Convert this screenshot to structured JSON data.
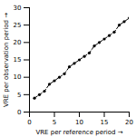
{
  "chart_data": {
    "type": "line",
    "xlabel": "VRE per reference period",
    "ylabel": "VRE per observation period",
    "x": [
      1,
      2,
      3,
      4,
      5,
      6,
      7,
      8,
      9,
      10,
      11,
      12,
      13,
      14,
      15,
      16,
      17,
      18,
      19,
      20
    ],
    "values": [
      4,
      5,
      6,
      8,
      9,
      10,
      11,
      13,
      14,
      15,
      16,
      17,
      19,
      20,
      21,
      22,
      23,
      25,
      26,
      27
    ],
    "color": "#000000",
    "line_style": "dashed",
    "marker": "circle",
    "xlim": [
      0,
      20
    ],
    "ylim": [
      0,
      30
    ],
    "xticks": [
      0,
      5,
      10,
      15,
      20
    ],
    "yticks": [
      0,
      5,
      10,
      15,
      20,
      25,
      30
    ],
    "grid": false
  }
}
